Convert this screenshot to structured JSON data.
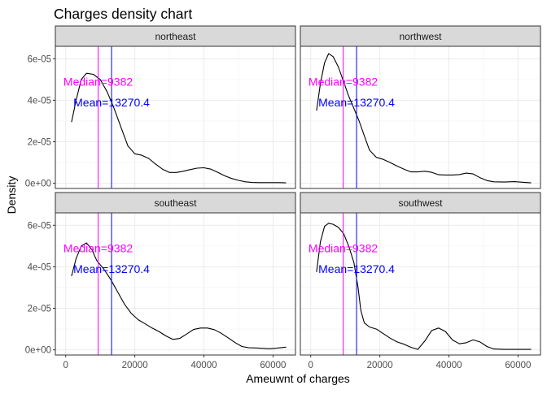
{
  "chart_data": {
    "type": "line",
    "title": "Charges density chart",
    "xlabel": "Ameuwnt of charges",
    "ylabel": "Density",
    "xlim": [
      -3000,
      66500
    ],
    "ylim": [
      -2.5e-06,
      6.6e-05
    ],
    "x_ticks": [
      0,
      20000,
      40000,
      60000
    ],
    "x_tick_labels": [
      "0",
      "20000",
      "40000",
      "60000"
    ],
    "y_ticks": [
      0,
      2e-05,
      4e-05,
      6e-05
    ],
    "y_tick_labels": [
      "0e+00",
      "2e-05",
      "4e-05",
      "6e-05"
    ],
    "grid": true,
    "reference_lines": [
      {
        "label": "Median=9382",
        "x": 9382,
        "color": "#ff00ff",
        "label_y": 4.9e-05
      },
      {
        "label": "Mean=13270.4",
        "x": 13270.4,
        "color": "#0000ff",
        "label_y": 3.9e-05
      }
    ],
    "panels": [
      {
        "name": "northeast",
        "x": [
          1700,
          3000,
          4500,
          6000,
          8000,
          10000,
          12000,
          14000,
          16000,
          18000,
          20000,
          22000,
          24000,
          26000,
          28000,
          30000,
          32000,
          34000,
          36000,
          38000,
          40000,
          42000,
          44000,
          46000,
          48000,
          50000,
          52000,
          54000,
          56000,
          58000,
          60000,
          62000,
          63800
        ],
        "y": [
          2.95e-05,
          4e-05,
          5e-05,
          5.3e-05,
          5.25e-05,
          5e-05,
          4.4e-05,
          3.6e-05,
          2.7e-05,
          1.8e-05,
          1.42e-05,
          1.35e-05,
          1.2e-05,
          9.3e-06,
          6.8e-06,
          5.2e-06,
          5.2e-06,
          5.8e-06,
          6.6e-06,
          7.3e-06,
          7.5e-06,
          6.8e-06,
          5.3e-06,
          3.6e-06,
          2.3e-06,
          1.4e-06,
          7e-07,
          4e-07,
          3e-07,
          3e-07,
          3e-07,
          3e-07,
          2e-07
        ]
      },
      {
        "name": "northwest",
        "x": [
          1700,
          2800,
          4000,
          5200,
          6500,
          8000,
          9500,
          11000,
          12500,
          14000,
          15500,
          17000,
          19000,
          21000,
          23000,
          25000,
          27000,
          29000,
          31000,
          33000,
          35000,
          37000,
          39000,
          41000,
          43000,
          45000,
          47000,
          49000,
          51000,
          53000,
          56000,
          59000,
          62000,
          63800
        ],
        "y": [
          3.5e-05,
          4.8e-05,
          5.8e-05,
          6.25e-05,
          6.1e-05,
          5.6e-05,
          4.9e-05,
          4.2e-05,
          3.6e-05,
          3e-05,
          2.3e-05,
          1.6e-05,
          1.25e-05,
          1.15e-05,
          1e-05,
          8.3e-06,
          6.8e-06,
          5.5e-06,
          5.5e-06,
          5.8e-06,
          5.3e-06,
          4.1e-06,
          4e-06,
          4e-06,
          4.2e-06,
          4.9e-06,
          4.5e-06,
          2.7e-06,
          1.3e-06,
          7e-07,
          6e-07,
          8e-07,
          4e-07,
          2e-07
        ]
      },
      {
        "name": "southeast",
        "x": [
          1700,
          3000,
          4500,
          6000,
          7500,
          9000,
          11000,
          13000,
          15000,
          17000,
          19000,
          21000,
          23000,
          25000,
          27000,
          29000,
          31000,
          33000,
          35000,
          37000,
          39000,
          41000,
          43000,
          45000,
          47000,
          49000,
          51000,
          53000,
          55000,
          57000,
          59000,
          61000,
          63800
        ],
        "y": [
          3.55e-05,
          4.4e-05,
          5e-05,
          5.15e-05,
          4.85e-05,
          4.3e-05,
          3.9e-05,
          3.4e-05,
          2.8e-05,
          2.2e-05,
          1.75e-05,
          1.45e-05,
          1.25e-05,
          1.05e-05,
          8.8e-06,
          6.7e-06,
          5e-06,
          5.5e-06,
          7.6e-06,
          9.8e-06,
          1.05e-05,
          1.05e-05,
          9.7e-06,
          8e-06,
          5.8e-06,
          3.5e-06,
          1.6e-06,
          1e-06,
          9e-07,
          7e-07,
          5e-07,
          8e-07,
          1.3e-06
        ]
      },
      {
        "name": "southwest",
        "x": [
          1700,
          2800,
          4000,
          5200,
          6500,
          8000,
          9500,
          11000,
          12500,
          13700,
          14500,
          15500,
          17000,
          19000,
          21000,
          23000,
          25000,
          27000,
          29000,
          31000,
          33000,
          35000,
          37000,
          39000,
          41000,
          43000,
          45000,
          47000,
          49000,
          51000,
          53000,
          56000,
          59000,
          62000,
          63800
        ],
        "y": [
          3.75e-05,
          5.2e-05,
          5.95e-05,
          6.1e-05,
          6.05e-05,
          5.9e-05,
          5.6e-05,
          5e-05,
          4.2e-05,
          3e-05,
          1.9e-05,
          1.3e-05,
          1.1e-05,
          1e-05,
          7.8e-06,
          5.6e-06,
          3.8e-06,
          2.7e-06,
          1.2e-06,
          2e-07,
          4.2e-06,
          9.3e-06,
          1.05e-05,
          8.8e-06,
          4.8e-06,
          2.9e-06,
          3.4e-06,
          4.8e-06,
          3.8e-06,
          1.6e-06,
          4e-07,
          2e-07,
          2e-07,
          2e-07,
          2e-07
        ]
      }
    ]
  }
}
